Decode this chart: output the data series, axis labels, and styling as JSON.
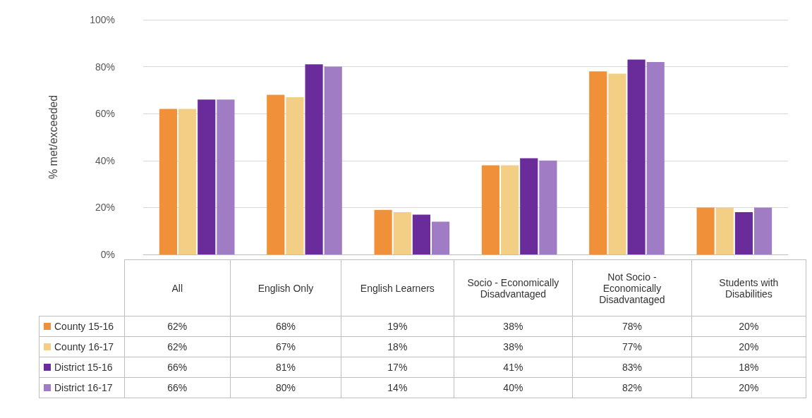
{
  "chart_data": {
    "type": "bar",
    "ylabel": "% met/exceeded",
    "categories": [
      "All",
      "English Only",
      "English Learners",
      "Socio - Economically Disadvantaged",
      "Not Socio - Economically Disadvantaged",
      "Students with Disabilities"
    ],
    "series": [
      {
        "name": "County 15-16",
        "color": "#f0913a",
        "values": [
          62,
          68,
          19,
          38,
          78,
          20
        ],
        "value_labels": [
          "62%",
          "68%",
          "19%",
          "38%",
          "78%",
          "20%"
        ]
      },
      {
        "name": "County 16-17",
        "color": "#f3cf86",
        "values": [
          62,
          67,
          18,
          38,
          77,
          20
        ],
        "value_labels": [
          "62%",
          "67%",
          "18%",
          "38%",
          "77%",
          "20%"
        ]
      },
      {
        "name": "District 15-16",
        "color": "#6a2c9b",
        "values": [
          66,
          81,
          17,
          41,
          83,
          18
        ],
        "value_labels": [
          "66%",
          "81%",
          "17%",
          "41%",
          "83%",
          "18%"
        ]
      },
      {
        "name": "District 16-17",
        "color": "#a07cc4",
        "values": [
          66,
          80,
          14,
          40,
          82,
          20
        ],
        "value_labels": [
          "66%",
          "80%",
          "14%",
          "40%",
          "82%",
          "20%"
        ]
      }
    ],
    "ylim": [
      0,
      100
    ],
    "yticks": [
      {
        "value": 0,
        "label": "0%"
      },
      {
        "value": 20,
        "label": "20%"
      },
      {
        "value": 40,
        "label": "40%"
      },
      {
        "value": 60,
        "label": "60%"
      },
      {
        "value": 80,
        "label": "80%"
      },
      {
        "value": 100,
        "label": "100%"
      }
    ],
    "grid": "y",
    "legend": "bottom left"
  }
}
